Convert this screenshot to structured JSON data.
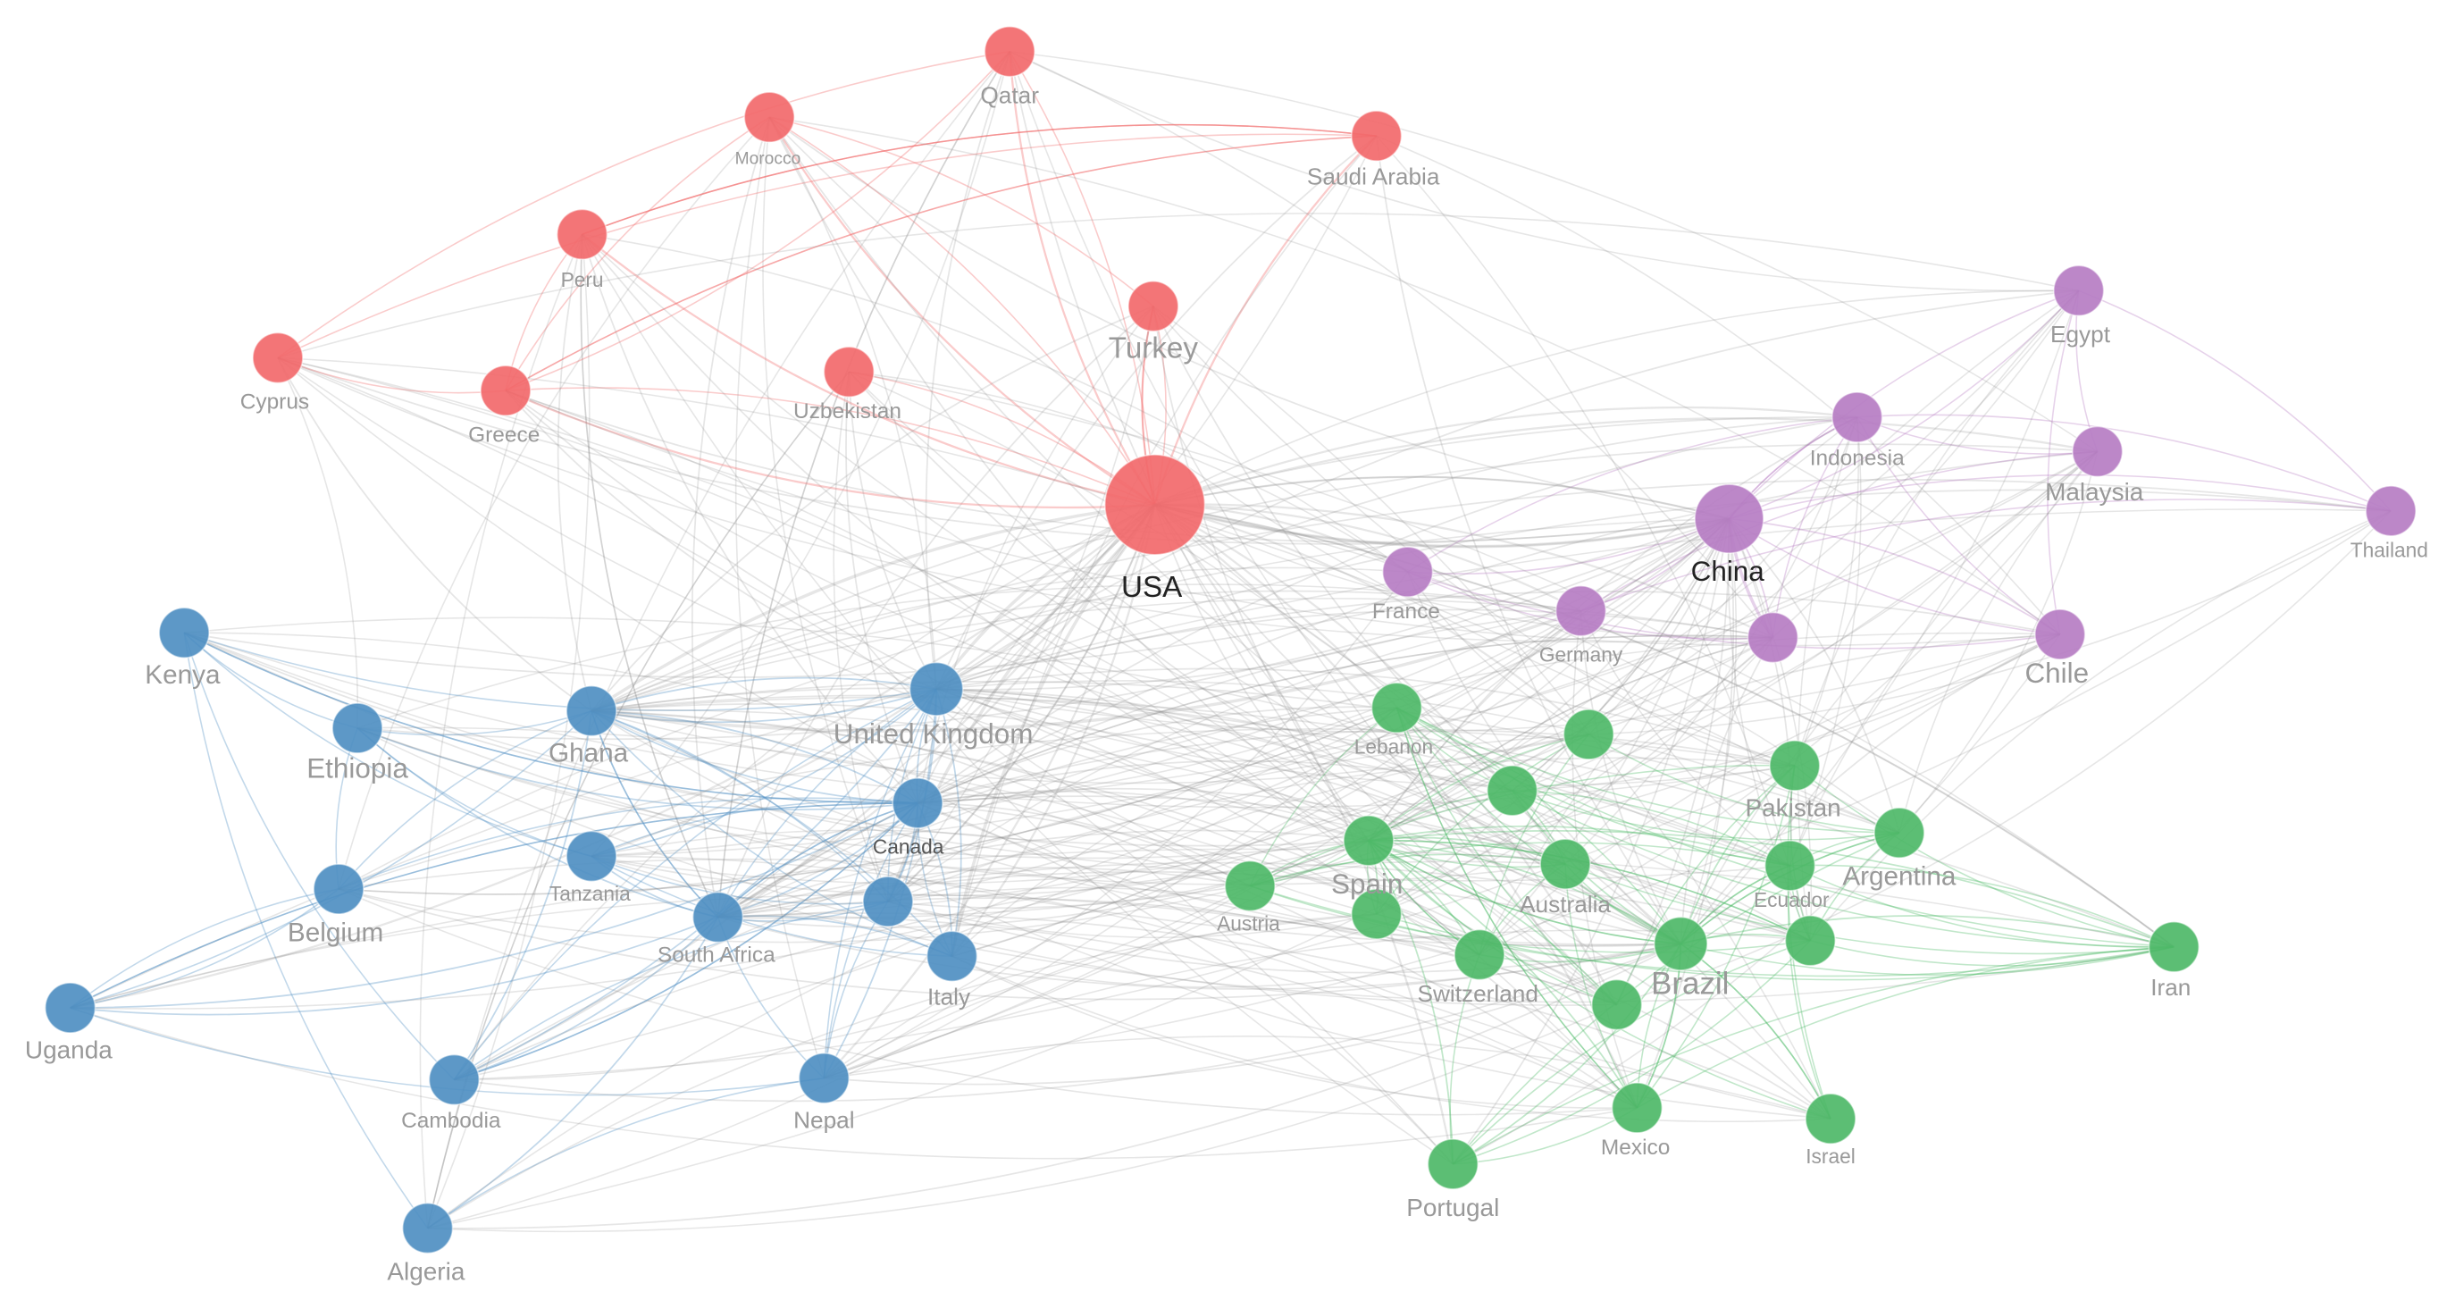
{
  "nodes": [
    {
      "label": "USA"
    },
    {
      "label": "Qatar"
    },
    {
      "label": "Morocco"
    },
    {
      "label": "Saudi Arabia"
    },
    {
      "label": "Peru"
    },
    {
      "label": "Turkey"
    },
    {
      "label": "Cyprus"
    },
    {
      "label": "Greece"
    },
    {
      "label": "Uzbekistan"
    },
    {
      "label": "Egypt"
    },
    {
      "label": "Indonesia"
    },
    {
      "label": "Malaysia"
    },
    {
      "label": "Thailand"
    },
    {
      "label": "China"
    },
    {
      "label": "France"
    },
    {
      "label": "Germany"
    },
    {
      "label": "Chile"
    },
    {
      "label": "Kenya"
    },
    {
      "label": "Ethiopia"
    },
    {
      "label": "Ghana"
    },
    {
      "label": "United Kingdom"
    },
    {
      "label": "Canada"
    },
    {
      "label": "Tanzania"
    },
    {
      "label": "Belgium"
    },
    {
      "label": "South Africa"
    },
    {
      "label": "Italy"
    },
    {
      "label": "Uganda"
    },
    {
      "label": "Cambodia"
    },
    {
      "label": "Nepal"
    },
    {
      "label": "Algeria"
    },
    {
      "label": "Lebanon"
    },
    {
      "label": "Pakistan"
    },
    {
      "label": "Argentina"
    },
    {
      "label": "Spain"
    },
    {
      "label": "Australia"
    },
    {
      "label": "Ecuador"
    },
    {
      "label": "Austria"
    },
    {
      "label": "Switzerland"
    },
    {
      "label": "Brazil"
    },
    {
      "label": "Iran"
    },
    {
      "label": "Mexico"
    },
    {
      "label": "Israel"
    },
    {
      "label": "Portugal"
    }
  ]
}
